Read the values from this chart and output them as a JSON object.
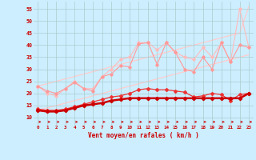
{
  "x": [
    0,
    1,
    2,
    3,
    4,
    5,
    6,
    7,
    8,
    9,
    10,
    11,
    12,
    13,
    14,
    15,
    16,
    17,
    18,
    19,
    20,
    21,
    22,
    23
  ],
  "line1": [
    13,
    12.5,
    12.5,
    13,
    14,
    15,
    15.5,
    16,
    17,
    17.5,
    18,
    18,
    18,
    18,
    18,
    18,
    18,
    18,
    18,
    18,
    18,
    18,
    18,
    20
  ],
  "line2": [
    13.5,
    13,
    13,
    13.5,
    14.5,
    15.5,
    16.5,
    17.5,
    18.5,
    19,
    20,
    21.5,
    22,
    21.5,
    21.5,
    21,
    20.5,
    18.5,
    19,
    20,
    19.5,
    17,
    19.5,
    20
  ],
  "line3": [
    23,
    21,
    20,
    22,
    24.5,
    22,
    21,
    27,
    28,
    31.5,
    31,
    40.5,
    41,
    32,
    41,
    37,
    30,
    29,
    35,
    30,
    41,
    33,
    40,
    39
  ],
  "line4": [
    23,
    20,
    19,
    22,
    25,
    22,
    22,
    27,
    30,
    34,
    35,
    41,
    41,
    38,
    41,
    37,
    35,
    34,
    39,
    35,
    41,
    33,
    55,
    39
  ],
  "line5_straight": [
    13,
    14,
    15,
    16,
    17,
    18,
    19,
    20,
    21,
    22,
    23,
    24,
    25,
    26,
    27,
    28,
    29,
    30,
    31,
    32,
    33,
    34,
    35,
    36
  ],
  "line6_straight": [
    23,
    24,
    25,
    26,
    27,
    28,
    29,
    30,
    31,
    32,
    33,
    34,
    35,
    36,
    37,
    38,
    39,
    40,
    41,
    42,
    43,
    44,
    45,
    56
  ],
  "bg_color": "#cceeff",
  "grid_color": "#aacccc",
  "line1_color": "#cc0000",
  "line2_color": "#ee3333",
  "line3_color": "#ff9999",
  "line4_color": "#ffbbbb",
  "line5_color": "#ffcccc",
  "line6_color": "#ffcccc",
  "arrow_color": "#cc0000",
  "xlabel": "Vent moyen/en rafales ( km/h )",
  "ylabel_ticks": [
    10,
    15,
    20,
    25,
    30,
    35,
    40,
    45,
    50,
    55
  ],
  "xlim": [
    -0.5,
    23.5
  ],
  "ylim": [
    7,
    58
  ]
}
